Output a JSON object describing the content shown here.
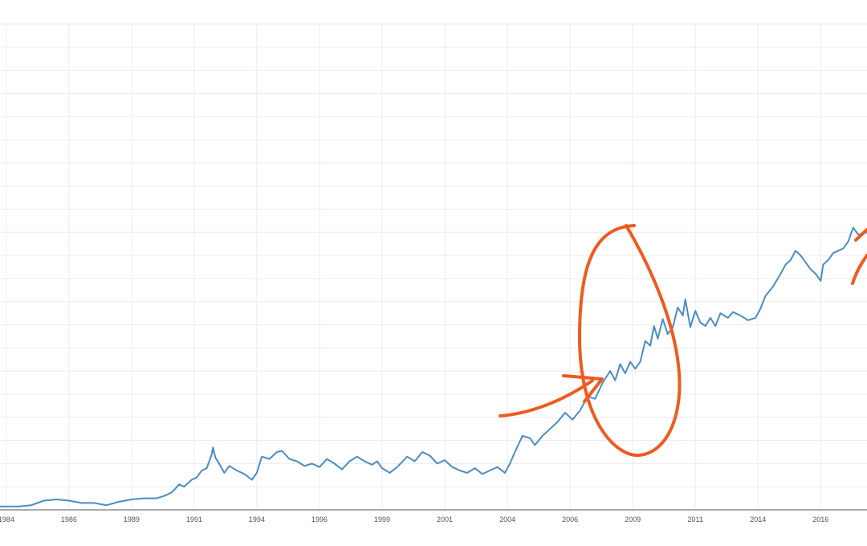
{
  "chart_data": {
    "type": "line",
    "title": "",
    "xlabel": "",
    "ylabel": "",
    "x_ticks": [
      {
        "label": "1984",
        "value": 1984.0
      },
      {
        "label": "1986",
        "value": 1986.5
      },
      {
        "label": "1989",
        "value": 1989.0
      },
      {
        "label": "1991",
        "value": 1991.5
      },
      {
        "label": "1994",
        "value": 1994.0
      },
      {
        "label": "1996",
        "value": 1996.5
      },
      {
        "label": "1999",
        "value": 1999.0
      },
      {
        "label": "2001",
        "value": 2001.5
      },
      {
        "label": "2004",
        "value": 2004.0
      },
      {
        "label": "2006",
        "value": 2006.5
      },
      {
        "label": "2009",
        "value": 2009.0
      },
      {
        "label": "2011",
        "value": 2011.5
      },
      {
        "label": "2014",
        "value": 2014.0
      },
      {
        "label": "2016",
        "value": 2016.5
      }
    ],
    "xlim": [
      1983.75,
      2018.35
    ],
    "ylim": [
      0,
      21
    ],
    "grid": true,
    "series": [
      {
        "name": "",
        "color": "#4a8dc3",
        "points": [
          [
            1983.75,
            0.15
          ],
          [
            1984.5,
            0.15
          ],
          [
            1985.0,
            0.2
          ],
          [
            1985.5,
            0.4
          ],
          [
            1986.0,
            0.45
          ],
          [
            1986.5,
            0.4
          ],
          [
            1987.0,
            0.3
          ],
          [
            1987.5,
            0.3
          ],
          [
            1988.0,
            0.2
          ],
          [
            1988.5,
            0.35
          ],
          [
            1989.0,
            0.45
          ],
          [
            1989.5,
            0.5
          ],
          [
            1990.0,
            0.5
          ],
          [
            1990.3,
            0.6
          ],
          [
            1990.6,
            0.75
          ],
          [
            1990.9,
            1.1
          ],
          [
            1991.1,
            1.0
          ],
          [
            1991.4,
            1.3
          ],
          [
            1991.6,
            1.4
          ],
          [
            1991.8,
            1.7
          ],
          [
            1992.0,
            1.8
          ],
          [
            1992.2,
            2.4
          ],
          [
            1992.25,
            2.7
          ],
          [
            1992.35,
            2.25
          ],
          [
            1992.5,
            2.0
          ],
          [
            1992.7,
            1.6
          ],
          [
            1992.9,
            1.9
          ],
          [
            1993.2,
            1.7
          ],
          [
            1993.5,
            1.55
          ],
          [
            1993.8,
            1.3
          ],
          [
            1994.0,
            1.6
          ],
          [
            1994.2,
            2.3
          ],
          [
            1994.5,
            2.2
          ],
          [
            1994.8,
            2.5
          ],
          [
            1995.0,
            2.55
          ],
          [
            1995.3,
            2.2
          ],
          [
            1995.6,
            2.1
          ],
          [
            1995.9,
            1.9
          ],
          [
            1996.2,
            2.0
          ],
          [
            1996.5,
            1.85
          ],
          [
            1996.8,
            2.2
          ],
          [
            1997.1,
            2.0
          ],
          [
            1997.4,
            1.75
          ],
          [
            1997.7,
            2.1
          ],
          [
            1998.0,
            2.3
          ],
          [
            1998.3,
            2.1
          ],
          [
            1998.6,
            1.95
          ],
          [
            1998.8,
            2.1
          ],
          [
            1999.0,
            1.8
          ],
          [
            1999.3,
            1.6
          ],
          [
            1999.6,
            1.85
          ],
          [
            2000.0,
            2.3
          ],
          [
            2000.3,
            2.1
          ],
          [
            2000.6,
            2.5
          ],
          [
            2000.9,
            2.35
          ],
          [
            2001.2,
            2.0
          ],
          [
            2001.5,
            2.15
          ],
          [
            2001.8,
            1.85
          ],
          [
            2002.1,
            1.7
          ],
          [
            2002.4,
            1.6
          ],
          [
            2002.7,
            1.8
          ],
          [
            2003.0,
            1.55
          ],
          [
            2003.3,
            1.7
          ],
          [
            2003.6,
            1.85
          ],
          [
            2003.9,
            1.6
          ],
          [
            2004.1,
            2.0
          ],
          [
            2004.3,
            2.5
          ],
          [
            2004.6,
            3.2
          ],
          [
            2004.9,
            3.1
          ],
          [
            2005.1,
            2.8
          ],
          [
            2005.4,
            3.2
          ],
          [
            2005.7,
            3.5
          ],
          [
            2006.0,
            3.8
          ],
          [
            2006.3,
            4.2
          ],
          [
            2006.6,
            3.9
          ],
          [
            2006.9,
            4.3
          ],
          [
            2007.2,
            4.9
          ],
          [
            2007.5,
            4.8
          ],
          [
            2007.8,
            5.5
          ],
          [
            2008.1,
            6.0
          ],
          [
            2008.3,
            5.6
          ],
          [
            2008.5,
            6.3
          ],
          [
            2008.7,
            5.9
          ],
          [
            2008.9,
            6.4
          ],
          [
            2009.1,
            6.1
          ],
          [
            2009.3,
            6.4
          ],
          [
            2009.5,
            7.3
          ],
          [
            2009.7,
            7.1
          ],
          [
            2009.85,
            7.95
          ],
          [
            2010.0,
            7.4
          ],
          [
            2010.2,
            8.25
          ],
          [
            2010.4,
            7.6
          ],
          [
            2010.6,
            7.9
          ],
          [
            2010.8,
            8.75
          ],
          [
            2011.0,
            8.4
          ],
          [
            2011.1,
            9.1
          ],
          [
            2011.3,
            7.9
          ],
          [
            2011.5,
            8.6
          ],
          [
            2011.7,
            8.1
          ],
          [
            2011.9,
            7.95
          ],
          [
            2012.1,
            8.3
          ],
          [
            2012.3,
            7.95
          ],
          [
            2012.5,
            8.5
          ],
          [
            2012.8,
            8.3
          ],
          [
            2013.0,
            8.55
          ],
          [
            2013.3,
            8.4
          ],
          [
            2013.6,
            8.2
          ],
          [
            2013.9,
            8.3
          ],
          [
            2014.1,
            8.7
          ],
          [
            2014.3,
            9.25
          ],
          [
            2014.6,
            9.65
          ],
          [
            2014.9,
            10.2
          ],
          [
            2015.1,
            10.6
          ],
          [
            2015.3,
            10.8
          ],
          [
            2015.5,
            11.2
          ],
          [
            2015.7,
            11.0
          ],
          [
            2015.9,
            10.7
          ],
          [
            2016.1,
            10.4
          ],
          [
            2016.3,
            10.2
          ],
          [
            2016.5,
            9.9
          ],
          [
            2016.6,
            10.6
          ],
          [
            2016.8,
            10.8
          ],
          [
            2017.0,
            11.1
          ],
          [
            2017.2,
            11.2
          ],
          [
            2017.4,
            11.3
          ],
          [
            2017.6,
            11.6
          ],
          [
            2017.8,
            12.2
          ],
          [
            2018.0,
            11.9
          ],
          [
            2018.35,
            12.0
          ]
        ]
      }
    ]
  }
}
